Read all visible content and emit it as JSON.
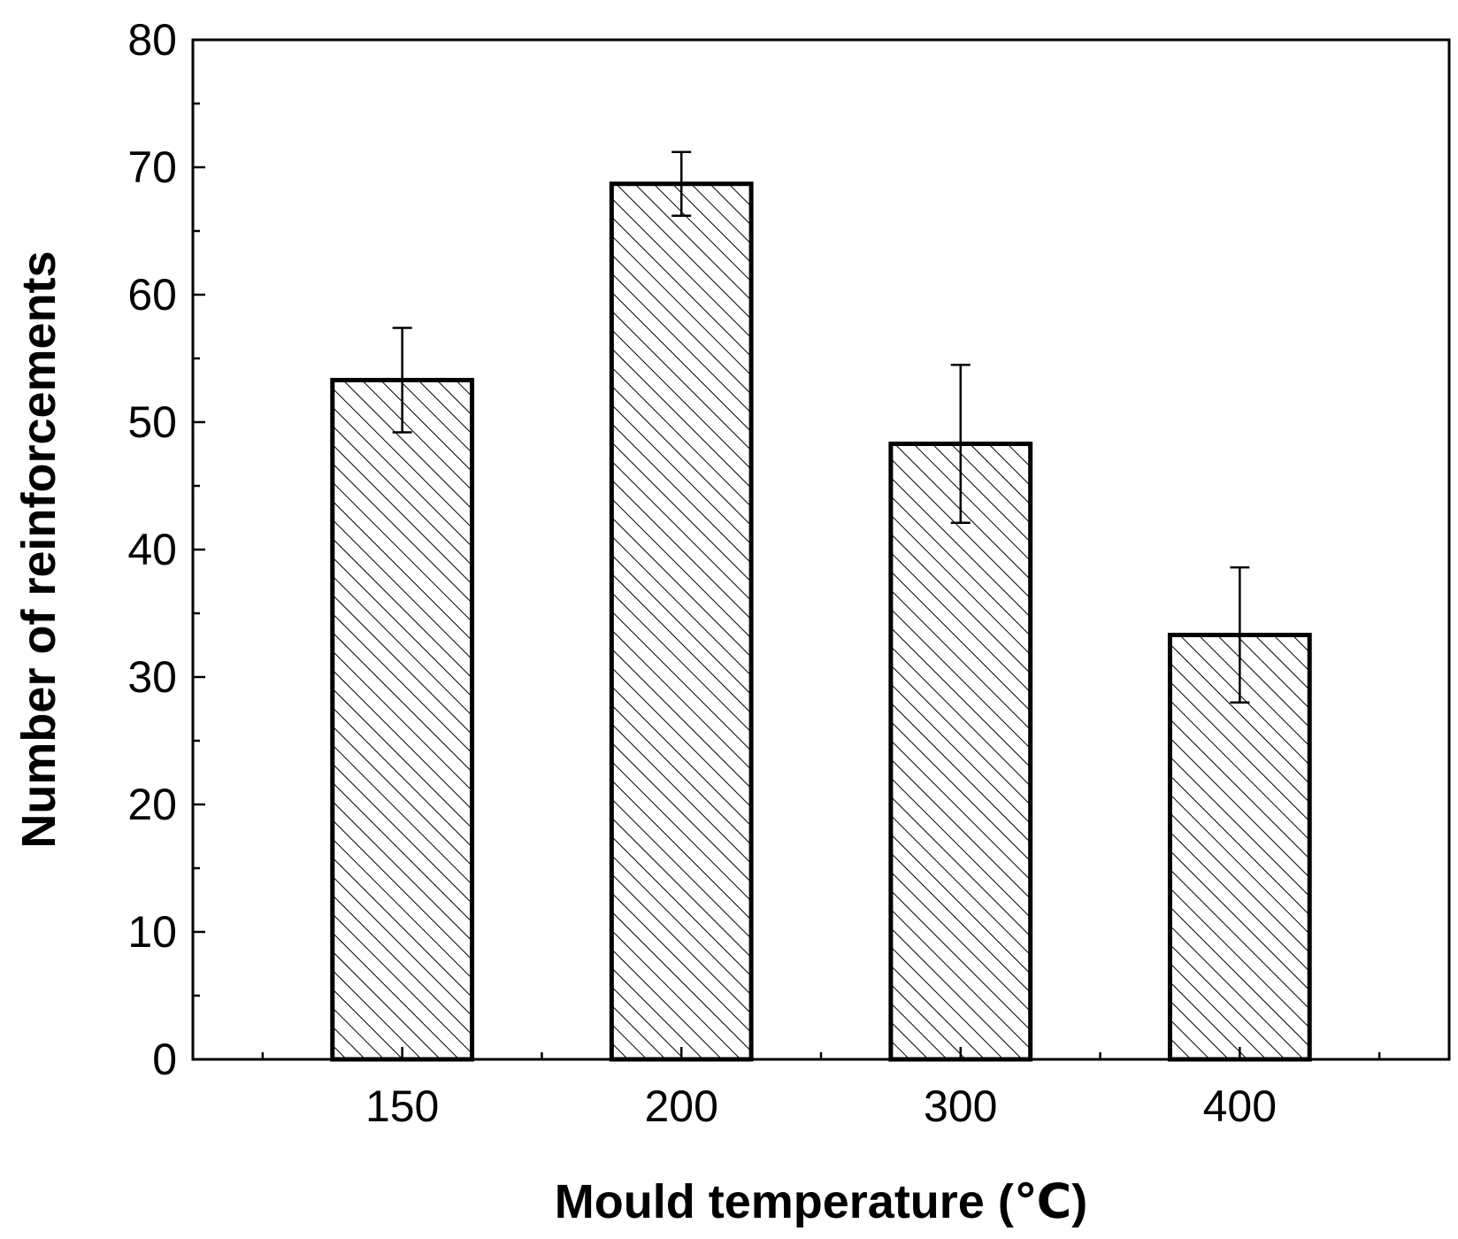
{
  "chart_data": {
    "type": "bar",
    "title": "",
    "xlabel": "Mould temperature (℃)",
    "ylabel": "Number of reinforcements",
    "categories": [
      "150",
      "200",
      "300",
      "400"
    ],
    "values": [
      53.3,
      68.7,
      48.3,
      33.3
    ],
    "error": [
      4.1,
      2.5,
      6.2,
      5.3
    ],
    "ylim": [
      0,
      80
    ],
    "yticks": [
      "0",
      "10",
      "20",
      "30",
      "40",
      "50",
      "60",
      "70",
      "80"
    ],
    "grid": false,
    "legend": "none",
    "bar_fill": "diagonal hatch",
    "colors": {
      "bar_edge": "#000000",
      "hatch": "#000000",
      "background": "#ffffff"
    }
  }
}
